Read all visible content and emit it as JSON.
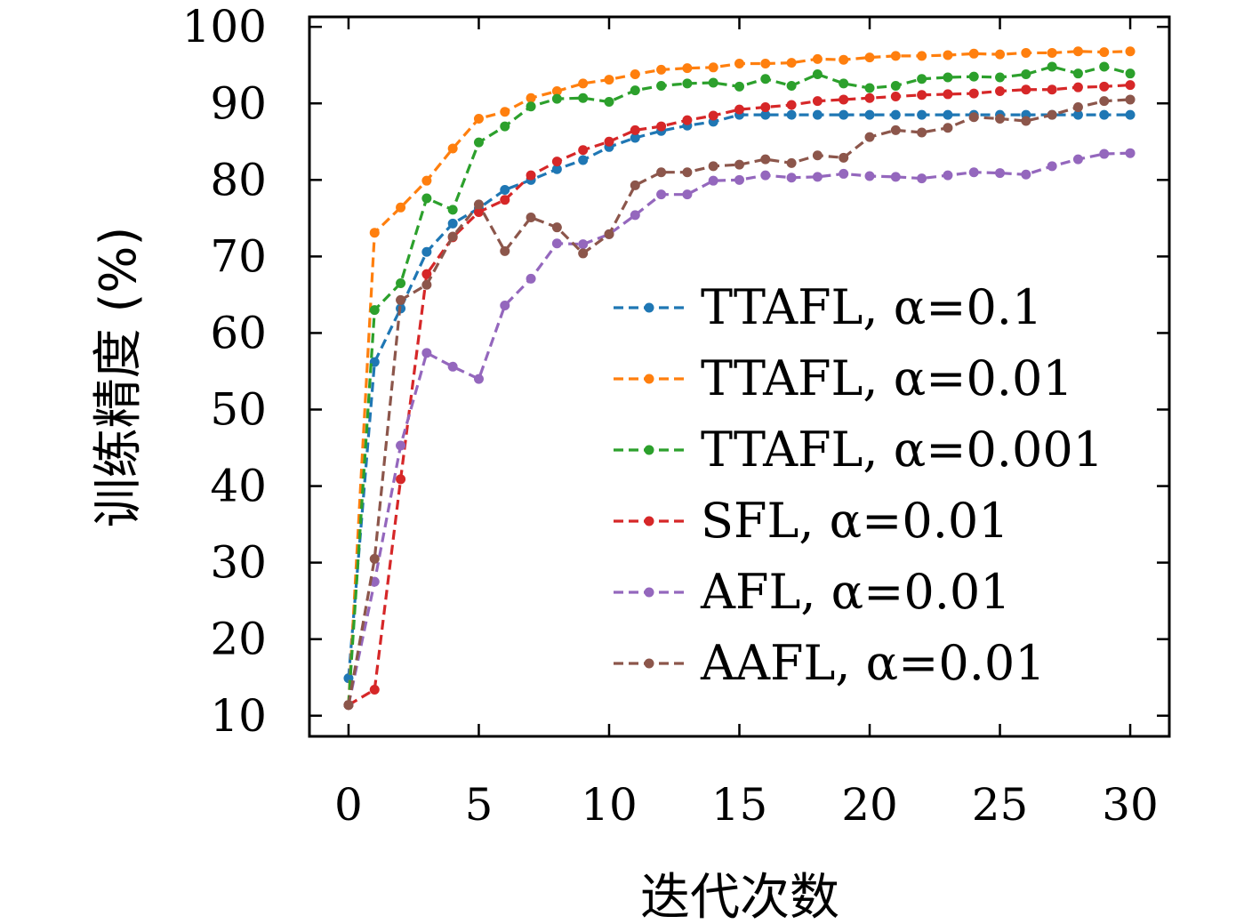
{
  "chart_data": {
    "type": "line",
    "xlabel": "迭代次数",
    "ylabel": "训练精度 (%)",
    "xlim": [
      -1.5,
      31.5
    ],
    "ylim": [
      7.3,
      101.3
    ],
    "x_ticks": [
      0,
      5,
      10,
      15,
      20,
      25,
      30
    ],
    "y_ticks": [
      10,
      20,
      30,
      40,
      50,
      60,
      70,
      80,
      90,
      100
    ],
    "grid": false,
    "legend_position": "center-right",
    "x": [
      0,
      1,
      2,
      3,
      4,
      5,
      6,
      7,
      8,
      9,
      10,
      11,
      12,
      13,
      14,
      15,
      16,
      17,
      18,
      19,
      20,
      21,
      22,
      23,
      24,
      25,
      26,
      27,
      28,
      29,
      30
    ],
    "series": [
      {
        "name": "TTAFL, α=0.1",
        "color": "#1f77b4",
        "values": [
          14.9,
          56.2,
          63.2,
          70.6,
          74.3,
          76.3,
          78.7,
          80.0,
          81.4,
          82.6,
          84.3,
          85.5,
          86.4,
          87.1,
          87.6,
          88.5,
          88.5,
          88.5,
          88.5,
          88.5,
          88.5,
          88.5,
          88.5,
          88.5,
          88.5,
          88.5,
          88.5,
          88.5,
          88.5,
          88.5,
          88.5
        ]
      },
      {
        "name": "TTAFL, α=0.01",
        "color": "#ff7f0e",
        "values": [
          11.4,
          73.1,
          76.4,
          79.9,
          84.1,
          88.0,
          88.9,
          90.7,
          91.6,
          92.6,
          93.1,
          93.8,
          94.4,
          94.6,
          94.7,
          95.2,
          95.2,
          95.3,
          95.8,
          95.7,
          96.0,
          96.2,
          96.2,
          96.3,
          96.5,
          96.4,
          96.6,
          96.6,
          96.8,
          96.7,
          96.8
        ]
      },
      {
        "name": "TTAFL, α=0.001",
        "color": "#2ca02c",
        "values": [
          11.4,
          63.0,
          66.5,
          77.6,
          76.1,
          84.9,
          87.0,
          89.6,
          90.6,
          90.7,
          90.2,
          91.7,
          92.3,
          92.6,
          92.7,
          92.2,
          93.2,
          92.3,
          93.8,
          92.6,
          92.0,
          92.3,
          93.2,
          93.4,
          93.5,
          93.4,
          93.8,
          94.8,
          93.9,
          94.8,
          93.9
        ]
      },
      {
        "name": "SFL, α=0.01",
        "color": "#d62728",
        "values": [
          11.4,
          13.4,
          40.9,
          67.7,
          72.5,
          75.8,
          77.4,
          80.6,
          82.4,
          83.9,
          85.0,
          86.5,
          87.0,
          87.8,
          88.4,
          89.2,
          89.5,
          89.8,
          90.3,
          90.5,
          90.7,
          90.9,
          91.1,
          91.2,
          91.3,
          91.6,
          91.8,
          91.8,
          92.1,
          92.2,
          92.4
        ]
      },
      {
        "name": "AFL, α=0.01",
        "color": "#9467bd",
        "values": [
          11.4,
          27.5,
          45.3,
          57.4,
          55.6,
          54.0,
          63.6,
          67.1,
          71.7,
          71.6,
          72.9,
          75.4,
          78.1,
          78.1,
          79.9,
          80.0,
          80.6,
          80.3,
          80.4,
          80.8,
          80.5,
          80.4,
          80.2,
          80.6,
          81.0,
          80.9,
          80.7,
          81.8,
          82.7,
          83.4,
          83.5
        ]
      },
      {
        "name": "AAFL, α=0.01",
        "color": "#8c564b",
        "values": [
          11.4,
          30.5,
          64.3,
          66.3,
          72.6,
          76.8,
          70.7,
          75.1,
          73.8,
          70.4,
          72.9,
          79.3,
          81.0,
          81.0,
          81.8,
          82.0,
          82.7,
          82.2,
          83.2,
          82.9,
          85.6,
          86.5,
          86.2,
          86.8,
          88.2,
          88.0,
          87.7,
          88.5,
          89.5,
          90.3,
          90.5
        ]
      }
    ]
  }
}
